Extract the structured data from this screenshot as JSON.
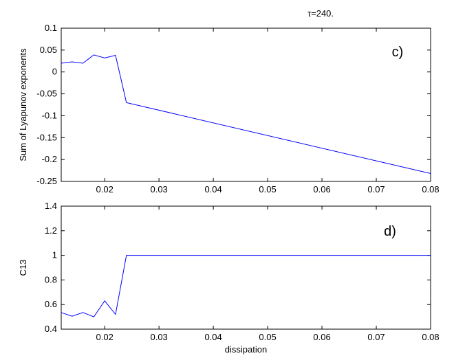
{
  "figure": {
    "title": "τ=240."
  },
  "chart_data": [
    {
      "type": "line",
      "panel_label": "c)",
      "title": "",
      "xlabel": "",
      "ylabel": "Sum of Lyapunov exponents",
      "xlim": [
        0.012,
        0.08
      ],
      "ylim": [
        -0.25,
        0.1
      ],
      "xticks": [
        0.02,
        0.03,
        0.04,
        0.05,
        0.06,
        0.07,
        0.08
      ],
      "xtick_labels": [
        "0.02",
        "0.03",
        "0.04",
        "0.05",
        "0.06",
        "0.07",
        "0.08"
      ],
      "yticks": [
        -0.25,
        -0.2,
        -0.15,
        -0.1,
        -0.05,
        0,
        0.05,
        0.1
      ],
      "ytick_labels": [
        "-0.25",
        "-0.2",
        "-0.15",
        "-0.1",
        "-0.05",
        "0",
        "0.05",
        "0.1"
      ],
      "grid": false,
      "color": "#0000ff",
      "series": [
        {
          "x": [
            0.012,
            0.014,
            0.016,
            0.018,
            0.02,
            0.022,
            0.024,
            0.08
          ],
          "y": [
            0.02,
            0.023,
            0.02,
            0.039,
            0.032,
            0.038,
            -0.07,
            -0.232
          ]
        }
      ]
    },
    {
      "type": "line",
      "panel_label": "d)",
      "title": "",
      "xlabel": "dissipation",
      "ylabel": "C13",
      "xlim": [
        0.012,
        0.08
      ],
      "ylim": [
        0.4,
        1.4
      ],
      "xticks": [
        0.02,
        0.03,
        0.04,
        0.05,
        0.06,
        0.07,
        0.08
      ],
      "xtick_labels": [
        "0.02",
        "0.03",
        "0.04",
        "0.05",
        "0.06",
        "0.07",
        "0.08"
      ],
      "yticks": [
        0.4,
        0.6,
        0.8,
        1,
        1.2,
        1.4
      ],
      "ytick_labels": [
        "0.4",
        "0.6",
        "0.8",
        "1",
        "1.2",
        "1.4"
      ],
      "grid": false,
      "color": "#0000ff",
      "series": [
        {
          "x": [
            0.012,
            0.014,
            0.016,
            0.018,
            0.02,
            0.022,
            0.024,
            0.08
          ],
          "y": [
            0.535,
            0.505,
            0.535,
            0.5,
            0.63,
            0.52,
            1.0,
            1.0
          ]
        }
      ]
    }
  ]
}
